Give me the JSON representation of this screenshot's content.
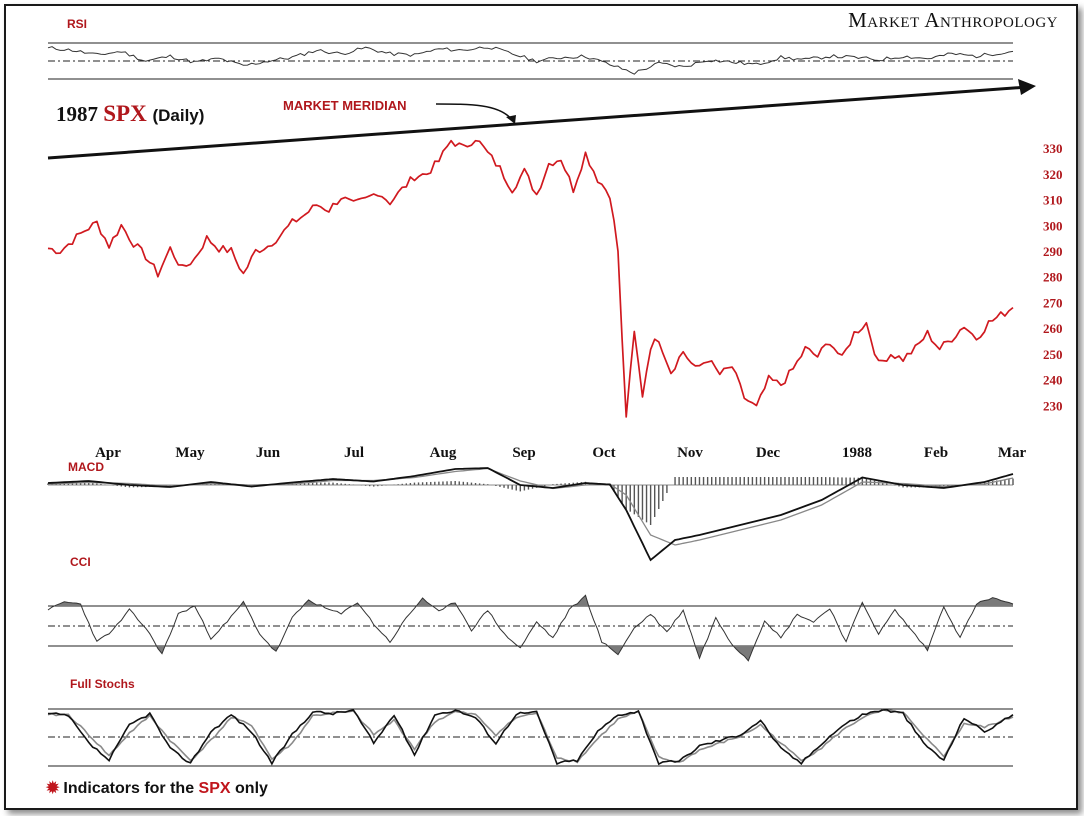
{
  "brand": "Market Anthropology",
  "footnote": {
    "prefix": "Indicators for the",
    "highlight": "SPX",
    "suffix": "only",
    "bullet_icon": "starburst-icon"
  },
  "colors": {
    "price": "#d0191f",
    "accent": "#b0171c",
    "indicator": "#333333",
    "fill": "#7a7a7a"
  },
  "chart_data": [
    {
      "type": "line",
      "panel": "price",
      "title": [
        "1987",
        "SPX",
        "(Daily)"
      ],
      "annotation": "MARKET MERIDIAN",
      "ylim": [
        222,
        336
      ],
      "yticks": [
        230,
        240,
        250,
        260,
        270,
        280,
        290,
        300,
        310,
        320,
        330
      ],
      "xticks": [
        "Apr",
        "May",
        "Jun",
        "Jul",
        "Aug",
        "Sep",
        "Oct",
        "Nov",
        "Dec",
        "1988",
        "Feb",
        "Mar"
      ],
      "x": [
        0,
        3,
        6,
        9,
        12,
        15,
        18,
        21,
        24,
        27,
        30,
        33,
        36,
        39,
        42,
        45,
        48,
        51,
        54,
        57,
        60,
        63,
        66,
        69,
        72,
        75,
        78,
        81,
        84,
        87,
        90,
        93,
        96,
        99,
        102,
        105,
        108,
        111,
        114,
        117,
        120,
        123,
        126,
        129,
        132,
        135,
        138,
        140,
        141,
        142,
        144,
        146,
        148,
        150,
        153,
        156,
        159,
        162,
        165,
        168,
        171,
        174,
        177,
        180,
        183,
        186,
        189,
        192,
        195,
        198,
        201,
        204,
        207,
        210,
        213,
        216,
        219,
        222,
        225,
        228,
        231,
        234,
        237
      ],
      "values": [
        291,
        290,
        294,
        298,
        301,
        292,
        300,
        293,
        288,
        281,
        291,
        283,
        287,
        295,
        291,
        290,
        281,
        290,
        292,
        296,
        301,
        304,
        308,
        306,
        311,
        308,
        310,
        313,
        309,
        314,
        319,
        320,
        325,
        333,
        330,
        334,
        328,
        322,
        314,
        321,
        312,
        324,
        326,
        314,
        328,
        318,
        312,
        290,
        255,
        226,
        258,
        234,
        253,
        256,
        243,
        251,
        244,
        248,
        242,
        245,
        233,
        229,
        240,
        238,
        244,
        252,
        249,
        255,
        248,
        258,
        262,
        246,
        250,
        248,
        252,
        258,
        252,
        256,
        261,
        256,
        262,
        265,
        268
      ]
    },
    {
      "type": "line",
      "panel": "indicator",
      "title": "RSI",
      "x": [
        0,
        6,
        12,
        18,
        24,
        30,
        36,
        42,
        48,
        54,
        60,
        66,
        72,
        78,
        84,
        90,
        96,
        102,
        108,
        114,
        120,
        126,
        132,
        138,
        144,
        150,
        156,
        162,
        168,
        174,
        180,
        186,
        192,
        198,
        204,
        210,
        216,
        222,
        228,
        234,
        237
      ],
      "values": [
        72,
        68,
        60,
        66,
        50,
        58,
        48,
        54,
        42,
        50,
        56,
        68,
        62,
        72,
        62,
        60,
        70,
        68,
        74,
        62,
        50,
        56,
        58,
        44,
        30,
        46,
        40,
        52,
        48,
        44,
        56,
        52,
        58,
        56,
        52,
        58,
        54,
        62,
        58,
        64,
        66
      ]
    },
    {
      "type": "line",
      "panel": "indicator",
      "title": "MACD",
      "series": [
        {
          "x": [
            0,
            10,
            20,
            30,
            40,
            50,
            60,
            70,
            80,
            90,
            100,
            108,
            116,
            124,
            132,
            138,
            142,
            148,
            154,
            160,
            170,
            180,
            190,
            200,
            210,
            220,
            230,
            237
          ],
          "values": [
            0.4,
            0.8,
            0,
            -0.4,
            0.6,
            -0.3,
            0.5,
            1.2,
            0.7,
            1.8,
            3.2,
            3.4,
            0,
            -0.6,
            0.4,
            0.1,
            -5,
            -15,
            -11,
            -10,
            -8,
            -6,
            -3,
            1.5,
            0,
            -0.6,
            0.6,
            2.2
          ]
        },
        {
          "x": [
            0,
            10,
            20,
            30,
            40,
            50,
            60,
            70,
            80,
            90,
            100,
            108,
            116,
            124,
            132,
            138,
            142,
            148,
            154,
            160,
            170,
            180,
            190,
            200,
            210,
            220,
            230,
            237
          ],
          "values": [
            0.2,
            0.5,
            0.3,
            -0.2,
            0.3,
            0,
            0.2,
            0.9,
            0.9,
            1.5,
            2.7,
            3.3,
            0.8,
            -0.7,
            0,
            0.2,
            -2,
            -10,
            -12,
            -11,
            -9,
            -7,
            -4,
            0.6,
            0.3,
            -0.3,
            0.2,
            1.4
          ]
        }
      ]
    },
    {
      "type": "line",
      "panel": "indicator",
      "title": "CCI",
      "x": [
        0,
        4,
        8,
        12,
        16,
        20,
        24,
        28,
        32,
        36,
        40,
        44,
        48,
        52,
        56,
        60,
        64,
        68,
        72,
        76,
        80,
        84,
        88,
        92,
        96,
        100,
        104,
        108,
        112,
        116,
        120,
        124,
        128,
        132,
        136,
        140,
        144,
        148,
        152,
        156,
        160,
        164,
        168,
        172,
        176,
        180,
        184,
        188,
        192,
        196,
        200,
        204,
        208,
        212,
        216,
        220,
        224,
        228,
        232,
        237
      ],
      "values": [
        80,
        120,
        110,
        -80,
        -20,
        80,
        -10,
        -140,
        60,
        100,
        -60,
        20,
        120,
        -40,
        -130,
        40,
        130,
        90,
        60,
        120,
        10,
        -80,
        40,
        140,
        70,
        120,
        -20,
        80,
        -40,
        -110,
        20,
        -60,
        80,
        150,
        -80,
        -140,
        -10,
        60,
        -30,
        80,
        -160,
        40,
        -90,
        -170,
        30,
        -60,
        60,
        20,
        90,
        -80,
        120,
        -40,
        80,
        -20,
        -120,
        100,
        -60,
        110,
        140,
        110
      ]
    },
    {
      "type": "line",
      "panel": "indicator",
      "title": "Full Stochs",
      "series": [
        {
          "x": [
            0,
            5,
            10,
            15,
            20,
            25,
            30,
            35,
            40,
            45,
            50,
            55,
            60,
            65,
            70,
            75,
            80,
            85,
            90,
            95,
            100,
            105,
            110,
            115,
            120,
            125,
            130,
            135,
            140,
            145,
            150,
            155,
            160,
            165,
            170,
            175,
            180,
            185,
            190,
            195,
            200,
            205,
            210,
            215,
            220,
            225,
            230,
            237
          ],
          "values": [
            92,
            88,
            40,
            10,
            72,
            92,
            30,
            5,
            60,
            90,
            60,
            5,
            55,
            95,
            92,
            98,
            40,
            90,
            20,
            90,
            98,
            85,
            40,
            92,
            94,
            5,
            10,
            60,
            90,
            96,
            5,
            8,
            35,
            45,
            55,
            80,
            30,
            5,
            40,
            70,
            90,
            99,
            92,
            40,
            10,
            85,
            60,
            90
          ]
        },
        {
          "x": [
            0,
            5,
            10,
            15,
            20,
            25,
            30,
            35,
            40,
            45,
            50,
            55,
            60,
            65,
            70,
            75,
            80,
            85,
            90,
            95,
            100,
            105,
            110,
            115,
            120,
            125,
            130,
            135,
            140,
            145,
            150,
            155,
            160,
            165,
            170,
            175,
            180,
            185,
            190,
            195,
            200,
            205,
            210,
            215,
            220,
            225,
            230,
            237
          ],
          "values": [
            90,
            90,
            55,
            18,
            58,
            88,
            45,
            10,
            45,
            85,
            72,
            12,
            40,
            88,
            93,
            95,
            55,
            80,
            30,
            78,
            95,
            90,
            55,
            85,
            93,
            15,
            8,
            48,
            82,
            95,
            15,
            6,
            28,
            40,
            52,
            72,
            40,
            10,
            32,
            62,
            85,
            97,
            94,
            52,
            18,
            75,
            68,
            86
          ]
        }
      ]
    }
  ]
}
